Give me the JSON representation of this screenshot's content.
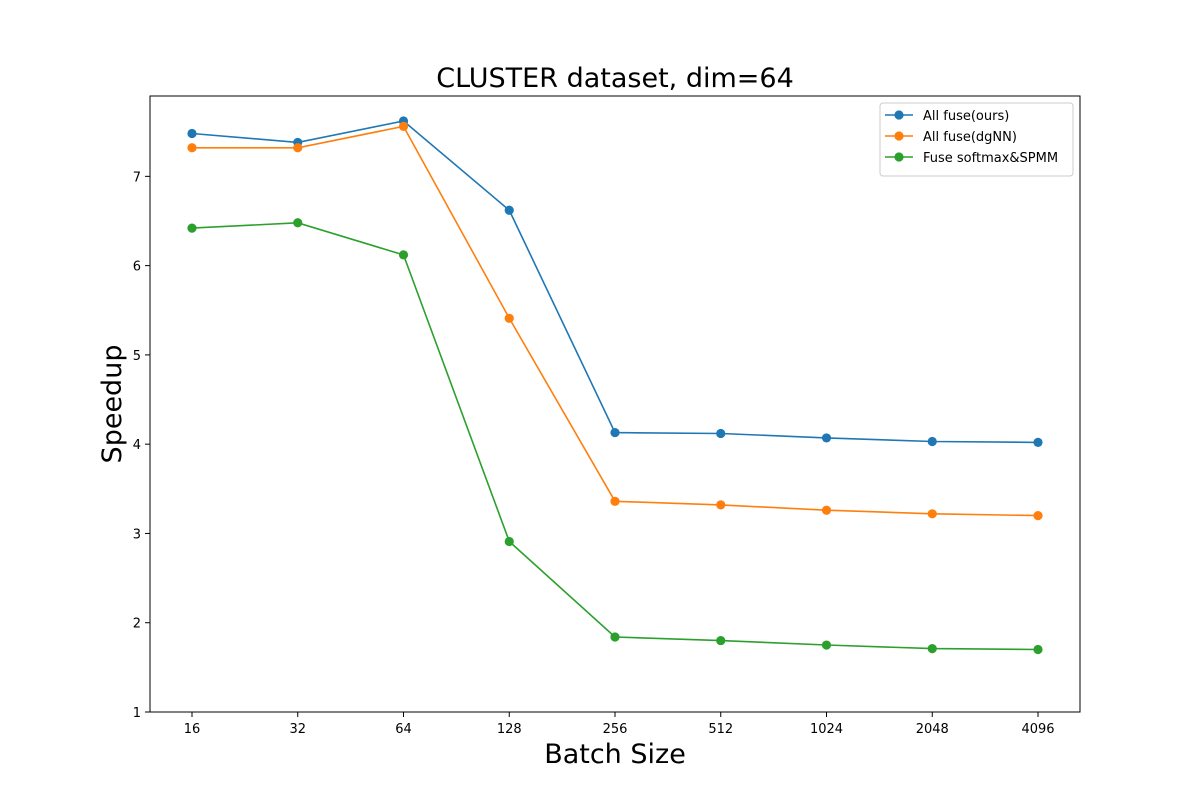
{
  "chart_data": {
    "type": "line",
    "title": "CLUSTER dataset, dim=64",
    "xlabel": "Batch Size",
    "ylabel": "Speedup",
    "categories": [
      "16",
      "32",
      "64",
      "128",
      "256",
      "512",
      "1024",
      "2048",
      "4096"
    ],
    "ylim": [
      1,
      7.9
    ],
    "yticks": [
      1,
      2,
      3,
      4,
      5,
      6,
      7
    ],
    "grid": false,
    "legend_position": "top-right",
    "series": [
      {
        "name": "All fuse(ours)",
        "color": "#1f77b4",
        "values": [
          7.48,
          7.38,
          7.62,
          6.62,
          4.13,
          4.12,
          4.07,
          4.03,
          4.02
        ]
      },
      {
        "name": "All fuse(dgNN)",
        "color": "#ff7f0e",
        "values": [
          7.32,
          7.32,
          7.56,
          5.41,
          3.36,
          3.32,
          3.26,
          3.22,
          3.2
        ]
      },
      {
        "name": "Fuse softmax&SPMM",
        "color": "#2ca02c",
        "values": [
          6.42,
          6.48,
          6.12,
          2.91,
          1.84,
          1.8,
          1.75,
          1.71,
          1.7
        ]
      }
    ]
  }
}
